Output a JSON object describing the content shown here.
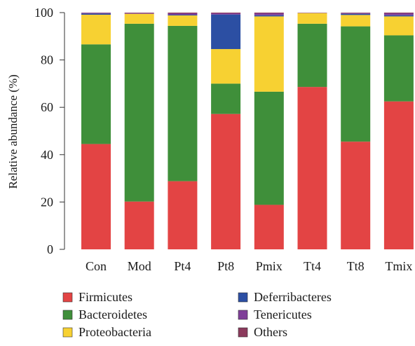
{
  "chart_data": {
    "type": "bar",
    "stacked": true,
    "categories": [
      "Con",
      "Mod",
      "Pt4",
      "Pt8",
      "Pmix",
      "Tt4",
      "Tt8",
      "Tmix"
    ],
    "ylabel": "Relative abundance (%)",
    "xlabel": "",
    "ylim": [
      0,
      100
    ],
    "yticks": [
      0,
      20,
      40,
      60,
      80,
      100
    ],
    "grid": false,
    "legend_position": "bottom",
    "series": [
      {
        "name": "Firmicutes",
        "color": "#e34444",
        "values": [
          44.5,
          20.2,
          28.8,
          57.2,
          18.8,
          68.6,
          45.5,
          62.5
        ]
      },
      {
        "name": "Bacteroidetes",
        "color": "#3f8f3a",
        "values": [
          42.1,
          75.1,
          65.6,
          12.8,
          47.8,
          26.7,
          48.7,
          27.9
        ]
      },
      {
        "name": "Proteobacteria",
        "color": "#f7d132",
        "values": [
          12.5,
          4.2,
          4.4,
          14.6,
          31.8,
          4.5,
          4.8,
          8.0
        ]
      },
      {
        "name": "Deferribacteres",
        "color": "#2c4fa3",
        "values": [
          0.5,
          0.0,
          0.3,
          14.6,
          0.5,
          0.0,
          0.5,
          0.5
        ]
      },
      {
        "name": "Tenericutes",
        "color": "#7f3f98",
        "values": [
          0.3,
          0.3,
          0.6,
          0.5,
          0.8,
          0.1,
          0.3,
          0.8
        ]
      },
      {
        "name": "Others",
        "color": "#8b3a5c",
        "values": [
          0.1,
          0.2,
          0.3,
          0.3,
          0.3,
          0.1,
          0.2,
          0.3
        ]
      }
    ]
  }
}
